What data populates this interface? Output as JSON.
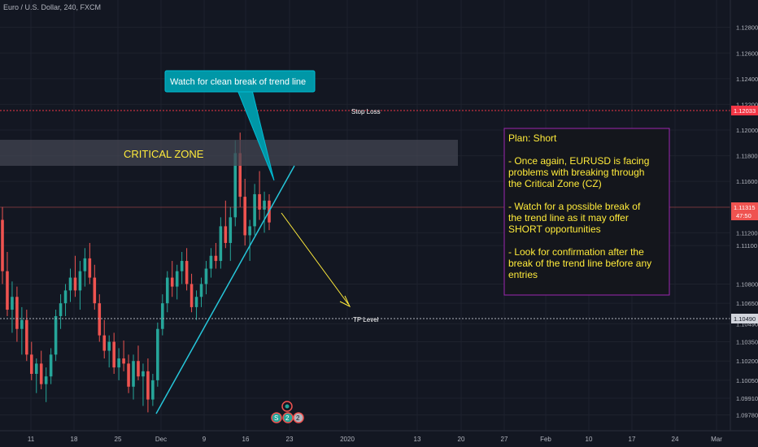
{
  "header": {
    "symbol_title": "Euro / U.S. Dollar, 240, FXCM"
  },
  "annotations": {
    "callout": "Watch for clean break of trend line",
    "critical_zone": "CRITICAL ZONE",
    "stop_loss": "Stop Loss",
    "tp_level": "TP Level",
    "plan": [
      "Plan: Short",
      "",
      "- Once again, EURUSD is facing",
      "problems with breaking through",
      "the Critical Zone (CZ)",
      "",
      "- Watch for a possible break of",
      "the trend line as it may offer",
      "SHORT opportunities",
      "",
      "- Look for confirmation after the",
      "break of the trend line before any",
      "entries"
    ]
  },
  "price_badges": {
    "stop_loss": "1.12033",
    "current": "1.11315",
    "countdown": "47:50",
    "tp": "1.10490"
  },
  "event_badges": [
    "S",
    "2",
    "2"
  ],
  "colors": {
    "background": "#131722",
    "bull": "#26a69a",
    "bear": "#ef5350",
    "trendline": "#26c6da",
    "callout_fill": "#0097a7",
    "zone_fill": "#434651",
    "zone_text": "#ffeb3b",
    "plan_border": "#9c27b0",
    "plan_text": "#ffeb3b",
    "stop_loss_line": "#f23645",
    "tp_line": "#b2b5be",
    "projection_arrow": "#ffeb3b"
  },
  "chart_data": {
    "type": "candlestick",
    "instrument": "EURUSD",
    "timeframe": "240",
    "ylim": [
      1.0972,
      1.1295
    ],
    "y_ticks": [
      "1.12800",
      "1.12600",
      "1.12400",
      "1.12200",
      "1.12000",
      "1.11800",
      "1.11600",
      "1.11400",
      "1.11200",
      "1.11100",
      "1.10800",
      "1.10650",
      "1.10490",
      "1.10350",
      "1.10200",
      "1.10050",
      "1.09910",
      "1.09780"
    ],
    "x_ticks": [
      "11",
      "18",
      "25",
      "Dec",
      "9",
      "16",
      "23",
      "2020",
      "13",
      "20",
      "27",
      "Feb",
      "10",
      "17",
      "24",
      "Mar"
    ],
    "levels": {
      "stop_loss": 1.12033,
      "take_profit": 1.1049,
      "current": 1.11315
    },
    "critical_zone": [
      1.1165,
      1.1185
    ],
    "trend_line": [
      {
        "x": "27 Nov",
        "y": 1.0978
      },
      {
        "x": "19 Dec",
        "y": 1.1173
      }
    ],
    "candles": [
      [
        1.113,
        1.114,
        1.108,
        1.109
      ],
      [
        1.109,
        1.1105,
        1.1055,
        1.106
      ],
      [
        1.106,
        1.1082,
        1.1042,
        1.107
      ],
      [
        1.107,
        1.1078,
        1.1035,
        1.1045
      ],
      [
        1.1045,
        1.1062,
        1.1025,
        1.1052
      ],
      [
        1.1052,
        1.106,
        1.102,
        1.1025
      ],
      [
        1.1025,
        1.1035,
        1.1005,
        1.101
      ],
      [
        1.101,
        1.1022,
        1.0995,
        1.1018
      ],
      [
        1.1018,
        1.1028,
        1.0998,
        1.1002
      ],
      [
        1.1002,
        1.1015,
        1.0988,
        1.1008
      ],
      [
        1.1008,
        1.103,
        1.1002,
        1.1025
      ],
      [
        1.1025,
        1.106,
        1.102,
        1.1055
      ],
      [
        1.1055,
        1.1072,
        1.1045,
        1.1065
      ],
      [
        1.1065,
        1.108,
        1.1055,
        1.1075
      ],
      [
        1.1075,
        1.1092,
        1.1066,
        1.1085
      ],
      [
        1.1085,
        1.1102,
        1.107,
        1.1075
      ],
      [
        1.1075,
        1.1098,
        1.106,
        1.109
      ],
      [
        1.109,
        1.1108,
        1.1078,
        1.11
      ],
      [
        1.11,
        1.1112,
        1.108,
        1.1085
      ],
      [
        1.1085,
        1.1095,
        1.106,
        1.1065
      ],
      [
        1.1065,
        1.1072,
        1.1035,
        1.104
      ],
      [
        1.104,
        1.1052,
        1.1022,
        1.1028
      ],
      [
        1.1028,
        1.104,
        1.1015,
        1.1035
      ],
      [
        1.1035,
        1.1042,
        1.101,
        1.1015
      ],
      [
        1.1015,
        1.103,
        1.1005,
        1.1022
      ],
      [
        1.1022,
        1.1036,
        1.1012,
        1.1018
      ],
      [
        1.1018,
        1.1025,
        1.0995,
        1.1
      ],
      [
        1.1,
        1.1025,
        1.099,
        1.102
      ],
      [
        1.102,
        1.1032,
        1.1005,
        1.1008
      ],
      [
        1.1008,
        1.1018,
        1.0985,
        1.1012
      ],
      [
        1.1012,
        1.1022,
        1.098,
        1.099
      ],
      [
        1.099,
        1.101,
        1.0985,
        1.1005
      ],
      [
        1.1005,
        1.105,
        1.1,
        1.1045
      ],
      [
        1.1045,
        1.1072,
        1.104,
        1.1065
      ],
      [
        1.1065,
        1.109,
        1.1058,
        1.1085
      ],
      [
        1.1085,
        1.1098,
        1.107,
        1.1078
      ],
      [
        1.1078,
        1.1095,
        1.1068,
        1.109
      ],
      [
        1.109,
        1.1105,
        1.108,
        1.1098
      ],
      [
        1.1098,
        1.1108,
        1.1075,
        1.108
      ],
      [
        1.108,
        1.1088,
        1.1058,
        1.1062
      ],
      [
        1.1062,
        1.1075,
        1.1052,
        1.107
      ],
      [
        1.107,
        1.1085,
        1.1062,
        1.108
      ],
      [
        1.108,
        1.1098,
        1.1072,
        1.1092
      ],
      [
        1.1092,
        1.1108,
        1.1085,
        1.1102
      ],
      [
        1.1102,
        1.1112,
        1.1092,
        1.1098
      ],
      [
        1.1098,
        1.1132,
        1.1092,
        1.1125
      ],
      [
        1.1125,
        1.1145,
        1.1108,
        1.1112
      ],
      [
        1.1112,
        1.114,
        1.1098,
        1.1132
      ],
      [
        1.1132,
        1.1192,
        1.1125,
        1.1182
      ],
      [
        1.1182,
        1.1198,
        1.114,
        1.1148
      ],
      [
        1.1148,
        1.1162,
        1.111,
        1.1118
      ],
      [
        1.1118,
        1.113,
        1.1098,
        1.1125
      ],
      [
        1.1125,
        1.1158,
        1.1118,
        1.115
      ],
      [
        1.115,
        1.1168,
        1.113,
        1.1138
      ],
      [
        1.1138,
        1.1152,
        1.112,
        1.1145
      ],
      [
        1.1145,
        1.115,
        1.1122,
        1.1128
      ]
    ]
  }
}
